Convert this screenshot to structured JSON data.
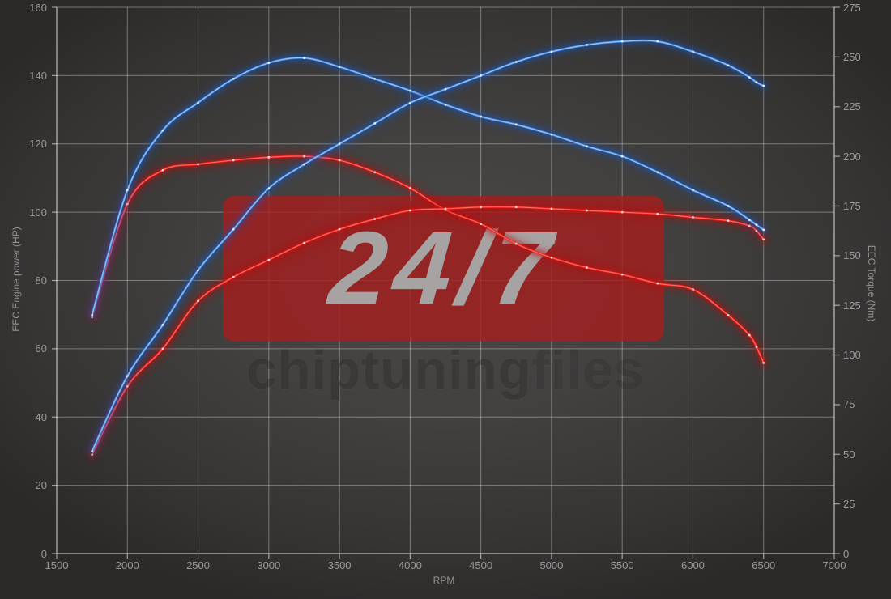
{
  "axes": {
    "x_label": "RPM",
    "y_left_label": "EEC Engine power (HP)",
    "y_right_label": "EEC Torque (Nm)"
  },
  "watermark": {
    "badge": "24/7",
    "brand_main": "chiptuning",
    "brand_suffix": "files"
  },
  "colors": {
    "blue_core": "#3f87e0",
    "blue_glow": "#1b54b4",
    "red_core": "#ef1a1a",
    "red_glow": "#b80d0d",
    "watermark_box": "rgba(164,30,30,0.82)",
    "grid_line": "rgba(255,255,255,0.35)",
    "axis_line": "rgba(255,255,255,0.55)",
    "tick_text": "#9a9a9a",
    "background_center": "#4b4947",
    "background_edge": "#2b2a29"
  },
  "chart_data": {
    "type": "line",
    "title": "",
    "xlabel": "RPM",
    "ylabel_left": "EEC Engine power (HP)",
    "ylabel_right": "EEC Torque (Nm)",
    "x_range": [
      1500,
      7000
    ],
    "y_left_range": [
      0,
      160
    ],
    "y_right_range": [
      0,
      275
    ],
    "x_ticks": [
      1500,
      2000,
      2500,
      3000,
      3500,
      4000,
      4500,
      5000,
      5500,
      6000,
      6500,
      7000
    ],
    "y_left_ticks": [
      0,
      20,
      40,
      60,
      80,
      100,
      120,
      140,
      160
    ],
    "y_right_ticks": [
      0,
      25,
      50,
      75,
      100,
      125,
      150,
      175,
      200,
      225,
      250,
      275
    ],
    "grid": "vertical line every 500 RPM; horizontal line every 20 HP (left axis)",
    "legend": "none",
    "x": [
      1750,
      2000,
      2250,
      2500,
      2750,
      3000,
      3250,
      3500,
      3750,
      4000,
      4250,
      4500,
      4750,
      5000,
      5250,
      5500,
      5750,
      6000,
      6250,
      6400,
      6450,
      6500
    ],
    "series": [
      {
        "name": "blue_power_hp",
        "axis": "left",
        "unit": "HP",
        "color": "blue",
        "values": [
          30,
          52,
          67,
          83,
          95,
          107,
          114,
          120,
          126,
          132,
          136,
          140,
          144,
          147,
          149,
          150,
          150,
          147,
          143,
          139.5,
          138,
          137
        ]
      },
      {
        "name": "blue_torque_nm",
        "axis": "right",
        "unit": "Nm",
        "color": "blue",
        "values": [
          120,
          183,
          213,
          227,
          239,
          247,
          249.5,
          245,
          239,
          233,
          226,
          220,
          216,
          211,
          205,
          200,
          192,
          183,
          175,
          168,
          165.5,
          163
        ]
      },
      {
        "name": "red_power_hp",
        "axis": "left",
        "unit": "HP",
        "color": "red",
        "values": [
          29,
          49,
          60,
          74,
          81,
          86,
          91,
          95,
          98,
          100.5,
          101,
          101.5,
          101.5,
          101,
          100.5,
          100,
          99.5,
          98.5,
          97.5,
          96,
          94.5,
          92
        ]
      },
      {
        "name": "red_torque_nm",
        "axis": "right",
        "unit": "Nm",
        "color": "red",
        "values": [
          119,
          176,
          193,
          196,
          198,
          199.5,
          200,
          198,
          192,
          184,
          173,
          166,
          156,
          149,
          144,
          140.5,
          136,
          133,
          120,
          110,
          104,
          96
        ]
      }
    ]
  }
}
